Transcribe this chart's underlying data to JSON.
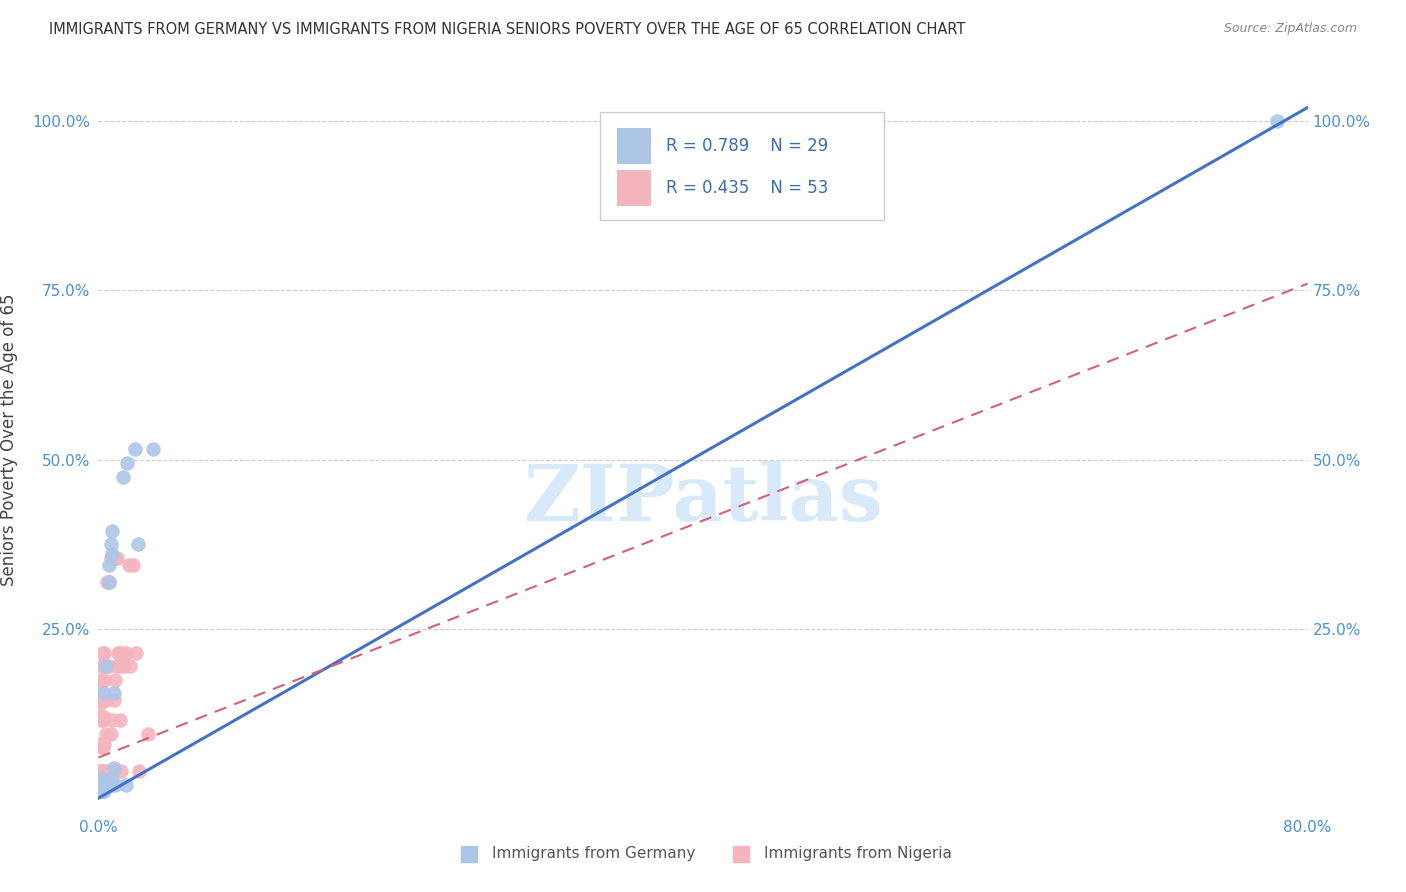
{
  "title": "IMMIGRANTS FROM GERMANY VS IMMIGRANTS FROM NIGERIA SENIORS POVERTY OVER THE AGE OF 65 CORRELATION CHART",
  "source": "Source: ZipAtlas.com",
  "ylabel": "Seniors Poverty Over the Age of 65",
  "watermark": "ZIPatlas",
  "xlim": [
    0.0,
    0.8
  ],
  "ylim": [
    -0.02,
    1.08
  ],
  "xticks": [
    0.0,
    0.2,
    0.4,
    0.6,
    0.8
  ],
  "xticklabels": [
    "0.0%",
    "",
    "",
    "",
    "80.0%"
  ],
  "yticks": [
    0.0,
    0.25,
    0.5,
    0.75,
    1.0
  ],
  "yticklabels_left": [
    "",
    "25.0%",
    "50.0%",
    "75.0%",
    "100.0%"
  ],
  "yticklabels_right": [
    "",
    "25.0%",
    "50.0%",
    "75.0%",
    "100.0%"
  ],
  "legend1_r": "0.789",
  "legend1_n": "29",
  "legend2_r": "0.435",
  "legend2_n": "53",
  "germany_color": "#adc6e8",
  "nigeria_color": "#f4b5bf",
  "germany_line_color": "#4472c4",
  "nigeria_line_color": "#d4607a",
  "germany_line_x": [
    0.0,
    0.8
  ],
  "germany_line_y": [
    0.0,
    1.02
  ],
  "nigeria_line_x": [
    0.0,
    0.8
  ],
  "nigeria_line_y": [
    0.06,
    0.76
  ],
  "germany_scatter": [
    [
      0.001,
      0.02
    ],
    [
      0.002,
      0.01
    ],
    [
      0.002,
      0.03
    ],
    [
      0.003,
      0.01
    ],
    [
      0.003,
      0.02
    ],
    [
      0.004,
      0.01
    ],
    [
      0.004,
      0.02
    ],
    [
      0.004,
      0.155
    ],
    [
      0.005,
      0.195
    ],
    [
      0.005,
      0.02
    ],
    [
      0.005,
      0.02
    ],
    [
      0.006,
      0.02
    ],
    [
      0.007,
      0.32
    ],
    [
      0.007,
      0.345
    ],
    [
      0.008,
      0.375
    ],
    [
      0.008,
      0.02
    ],
    [
      0.009,
      0.36
    ],
    [
      0.009,
      0.395
    ],
    [
      0.009,
      0.03
    ],
    [
      0.01,
      0.045
    ],
    [
      0.01,
      0.155
    ],
    [
      0.011,
      0.02
    ],
    [
      0.016,
      0.475
    ],
    [
      0.018,
      0.02
    ],
    [
      0.019,
      0.495
    ],
    [
      0.024,
      0.515
    ],
    [
      0.026,
      0.375
    ],
    [
      0.036,
      0.515
    ],
    [
      0.78,
      1.0
    ]
  ],
  "nigeria_scatter": [
    [
      0.001,
      0.04
    ],
    [
      0.001,
      0.08
    ],
    [
      0.001,
      0.12
    ],
    [
      0.001,
      0.145
    ],
    [
      0.001,
      0.165
    ],
    [
      0.002,
      0.04
    ],
    [
      0.002,
      0.075
    ],
    [
      0.002,
      0.115
    ],
    [
      0.002,
      0.14
    ],
    [
      0.002,
      0.175
    ],
    [
      0.002,
      0.195
    ],
    [
      0.003,
      0.04
    ],
    [
      0.003,
      0.075
    ],
    [
      0.003,
      0.115
    ],
    [
      0.003,
      0.145
    ],
    [
      0.003,
      0.195
    ],
    [
      0.003,
      0.215
    ],
    [
      0.004,
      0.08
    ],
    [
      0.004,
      0.12
    ],
    [
      0.004,
      0.175
    ],
    [
      0.004,
      0.215
    ],
    [
      0.005,
      0.04
    ],
    [
      0.005,
      0.095
    ],
    [
      0.005,
      0.145
    ],
    [
      0.005,
      0.195
    ],
    [
      0.006,
      0.32
    ],
    [
      0.007,
      0.32
    ],
    [
      0.007,
      0.195
    ],
    [
      0.007,
      0.04
    ],
    [
      0.008,
      0.095
    ],
    [
      0.008,
      0.355
    ],
    [
      0.009,
      0.115
    ],
    [
      0.009,
      0.355
    ],
    [
      0.01,
      0.145
    ],
    [
      0.01,
      0.04
    ],
    [
      0.011,
      0.175
    ],
    [
      0.011,
      0.355
    ],
    [
      0.012,
      0.195
    ],
    [
      0.012,
      0.355
    ],
    [
      0.013,
      0.215
    ],
    [
      0.014,
      0.115
    ],
    [
      0.014,
      0.195
    ],
    [
      0.014,
      0.215
    ],
    [
      0.015,
      0.04
    ],
    [
      0.015,
      0.215
    ],
    [
      0.017,
      0.195
    ],
    [
      0.018,
      0.215
    ],
    [
      0.02,
      0.345
    ],
    [
      0.021,
      0.195
    ],
    [
      0.023,
      0.345
    ],
    [
      0.025,
      0.215
    ],
    [
      0.027,
      0.04
    ],
    [
      0.033,
      0.095
    ]
  ]
}
